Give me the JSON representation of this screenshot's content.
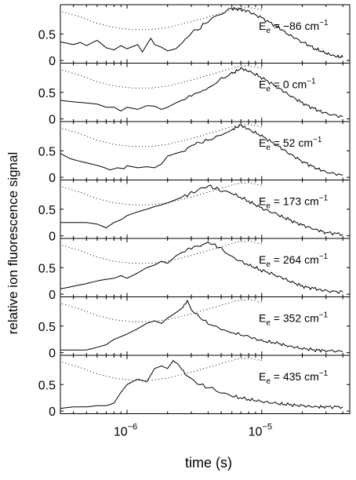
{
  "chart_data": {
    "type": "line",
    "ylabel": "relative ion fluorescence signal",
    "xlabel": "time (s)",
    "x_scale": "log",
    "xlim": [
      3.2e-07,
      4.5e-05
    ],
    "ylim": [
      -0.05,
      1.05
    ],
    "x_tick_labels": [
      {
        "x": 1e-06,
        "base": "10",
        "exp": "−6"
      },
      {
        "x": 1e-05,
        "base": "10",
        "exp": "−5"
      }
    ],
    "y_tick_labels": [
      {
        "y": 0,
        "label": "0"
      },
      {
        "y": 0.5,
        "label": "0.5"
      }
    ],
    "grid": false,
    "panels": [
      {
        "label": {
          "sym": "E",
          "sub": "e",
          "value": "= −86 cm",
          "sup": "−1"
        },
        "dotted": [
          [
            3.3e-07,
            0.92
          ],
          [
            4.5e-07,
            0.82
          ],
          [
            6e-07,
            0.7
          ],
          [
            8e-07,
            0.62
          ],
          [
            1.1e-06,
            0.58
          ],
          [
            1.5e-06,
            0.58
          ],
          [
            2e-06,
            0.62
          ],
          [
            3e-06,
            0.73
          ],
          [
            4.5e-06,
            0.86
          ],
          [
            6.5e-06,
            0.98
          ],
          [
            8e-06,
            1.0
          ],
          [
            1e-05,
            0.95
          ]
        ],
        "solid": [
          [
            3.2e-07,
            0.35
          ],
          [
            4e-07,
            0.3
          ],
          [
            4.5e-07,
            0.34
          ],
          [
            5e-07,
            0.28
          ],
          [
            6e-07,
            0.38
          ],
          [
            7e-07,
            0.24
          ],
          [
            8e-07,
            0.2
          ],
          [
            9e-07,
            0.28
          ],
          [
            1e-06,
            0.22
          ],
          [
            1.2e-06,
            0.3
          ],
          [
            1.3e-06,
            0.16
          ],
          [
            1.5e-06,
            0.42
          ],
          [
            1.6e-06,
            0.3
          ],
          [
            1.8e-06,
            0.25
          ],
          [
            2e-06,
            0.18
          ],
          [
            2.3e-06,
            0.22
          ],
          [
            2.7e-06,
            0.38
          ],
          [
            3e-06,
            0.52
          ],
          [
            3.5e-06,
            0.62
          ],
          [
            4e-06,
            0.75
          ],
          [
            5e-06,
            0.88
          ],
          [
            6e-06,
            0.98
          ],
          [
            7e-06,
            0.96
          ],
          [
            8e-06,
            0.92
          ],
          [
            1e-05,
            0.8
          ],
          [
            1.3e-05,
            0.64
          ],
          [
            1.6e-05,
            0.48
          ],
          [
            2e-05,
            0.35
          ],
          [
            2.5e-05,
            0.22
          ],
          [
            3e-05,
            0.14
          ],
          [
            3.5e-05,
            0.08
          ],
          [
            4e-05,
            0.06
          ]
        ]
      },
      {
        "label": {
          "sym": "E",
          "sub": "e",
          "value": "= 0 cm",
          "sup": "−1"
        },
        "dotted": [
          [
            3.3e-07,
            0.92
          ],
          [
            4.5e-07,
            0.82
          ],
          [
            6e-07,
            0.7
          ],
          [
            8e-07,
            0.62
          ],
          [
            1.1e-06,
            0.58
          ],
          [
            1.5e-06,
            0.58
          ],
          [
            2e-06,
            0.62
          ],
          [
            3e-06,
            0.73
          ],
          [
            4.5e-06,
            0.86
          ],
          [
            6.5e-06,
            0.98
          ],
          [
            8e-06,
            1.0
          ],
          [
            1e-05,
            0.95
          ]
        ],
        "solid": [
          [
            3.2e-07,
            0.35
          ],
          [
            4e-07,
            0.32
          ],
          [
            5e-07,
            0.3
          ],
          [
            6e-07,
            0.28
          ],
          [
            7e-07,
            0.22
          ],
          [
            8e-07,
            0.22
          ],
          [
            9e-07,
            0.15
          ],
          [
            1e-06,
            0.22
          ],
          [
            1.2e-06,
            0.18
          ],
          [
            1.4e-06,
            0.25
          ],
          [
            1.6e-06,
            0.24
          ],
          [
            1.8e-06,
            0.18
          ],
          [
            2e-06,
            0.22
          ],
          [
            2.3e-06,
            0.3
          ],
          [
            2.7e-06,
            0.38
          ],
          [
            3e-06,
            0.45
          ],
          [
            3.5e-06,
            0.52
          ],
          [
            4e-06,
            0.58
          ],
          [
            5e-06,
            0.75
          ],
          [
            6e-06,
            0.85
          ],
          [
            7e-06,
            0.95
          ],
          [
            8e-06,
            0.9
          ],
          [
            1e-05,
            0.78
          ],
          [
            1.3e-05,
            0.6
          ],
          [
            1.6e-05,
            0.45
          ],
          [
            2e-05,
            0.3
          ],
          [
            2.5e-05,
            0.18
          ],
          [
            3e-05,
            0.1
          ],
          [
            4e-05,
            0.04
          ]
        ]
      },
      {
        "label": {
          "sym": "E",
          "sub": "e",
          "value": "= 52 cm",
          "sup": "−1"
        },
        "dotted": [
          [
            3.3e-07,
            0.92
          ],
          [
            4.5e-07,
            0.82
          ],
          [
            6e-07,
            0.7
          ],
          [
            8e-07,
            0.62
          ],
          [
            1.1e-06,
            0.58
          ],
          [
            1.5e-06,
            0.58
          ],
          [
            2e-06,
            0.62
          ],
          [
            3e-06,
            0.73
          ],
          [
            4.5e-06,
            0.86
          ],
          [
            6.5e-06,
            0.98
          ],
          [
            8e-06,
            1.0
          ],
          [
            1e-05,
            0.95
          ]
        ],
        "solid": [
          [
            3.2e-07,
            0.45
          ],
          [
            3.8e-07,
            0.35
          ],
          [
            4.5e-07,
            0.3
          ],
          [
            5.5e-07,
            0.25
          ],
          [
            6.5e-07,
            0.2
          ],
          [
            7.5e-07,
            0.14
          ],
          [
            8.5e-07,
            0.18
          ],
          [
            9.5e-07,
            0.16
          ],
          [
            1e-06,
            0.22
          ],
          [
            1.2e-06,
            0.18
          ],
          [
            1.4e-06,
            0.2
          ],
          [
            1.6e-06,
            0.18
          ],
          [
            1.8e-06,
            0.25
          ],
          [
            2e-06,
            0.4
          ],
          [
            2.3e-06,
            0.45
          ],
          [
            2.7e-06,
            0.5
          ],
          [
            3e-06,
            0.6
          ],
          [
            3.5e-06,
            0.65
          ],
          [
            4e-06,
            0.7
          ],
          [
            5e-06,
            0.8
          ],
          [
            6e-06,
            0.9
          ],
          [
            7e-06,
            0.98
          ],
          [
            8e-06,
            0.9
          ],
          [
            1e-05,
            0.78
          ],
          [
            1.3e-05,
            0.6
          ],
          [
            1.6e-05,
            0.45
          ],
          [
            2e-05,
            0.3
          ],
          [
            2.5e-05,
            0.18
          ],
          [
            3e-05,
            0.1
          ],
          [
            4e-05,
            0.04
          ]
        ]
      },
      {
        "label": {
          "sym": "E",
          "sub": "e",
          "value": "= 173 cm",
          "sup": "−1"
        },
        "dotted": [
          [
            3.3e-07,
            0.92
          ],
          [
            4.5e-07,
            0.82
          ],
          [
            6e-07,
            0.7
          ],
          [
            8e-07,
            0.62
          ],
          [
            1.1e-06,
            0.58
          ],
          [
            1.5e-06,
            0.58
          ],
          [
            2e-06,
            0.62
          ],
          [
            3e-06,
            0.73
          ],
          [
            4.5e-06,
            0.86
          ],
          [
            6.5e-06,
            0.98
          ],
          [
            8e-06,
            1.0
          ],
          [
            1e-05,
            0.95
          ]
        ],
        "solid": [
          [
            3.2e-07,
            0.25
          ],
          [
            4e-07,
            0.25
          ],
          [
            5e-07,
            0.25
          ],
          [
            6e-07,
            0.22
          ],
          [
            7e-07,
            0.15
          ],
          [
            8e-07,
            0.25
          ],
          [
            9e-07,
            0.3
          ],
          [
            1e-06,
            0.38
          ],
          [
            1.2e-06,
            0.45
          ],
          [
            1.4e-06,
            0.5
          ],
          [
            1.6e-06,
            0.55
          ],
          [
            1.8e-06,
            0.58
          ],
          [
            2e-06,
            0.62
          ],
          [
            2.3e-06,
            0.68
          ],
          [
            2.7e-06,
            0.75
          ],
          [
            3e-06,
            0.8
          ],
          [
            3.5e-06,
            0.88
          ],
          [
            4e-06,
            0.94
          ],
          [
            4.5e-06,
            0.9
          ],
          [
            5e-06,
            0.85
          ],
          [
            6e-06,
            0.8
          ],
          [
            8e-06,
            0.65
          ],
          [
            1e-05,
            0.52
          ],
          [
            1.3e-05,
            0.4
          ],
          [
            1.6e-05,
            0.3
          ],
          [
            2e-05,
            0.2
          ],
          [
            2.5e-05,
            0.12
          ],
          [
            3e-05,
            0.06
          ],
          [
            4e-05,
            0.03
          ]
        ]
      },
      {
        "label": {
          "sym": "E",
          "sub": "e",
          "value": "= 264 cm",
          "sup": "−1"
        },
        "dotted": [
          [
            3.3e-07,
            0.92
          ],
          [
            4.5e-07,
            0.82
          ],
          [
            6e-07,
            0.7
          ],
          [
            8e-07,
            0.62
          ],
          [
            1.1e-06,
            0.58
          ],
          [
            1.5e-06,
            0.58
          ],
          [
            2e-06,
            0.62
          ],
          [
            3e-06,
            0.73
          ],
          [
            4.5e-06,
            0.86
          ],
          [
            6.5e-06,
            0.98
          ],
          [
            8e-06,
            1.0
          ],
          [
            1e-05,
            0.95
          ]
        ],
        "solid": [
          [
            3.2e-07,
            0.1
          ],
          [
            4e-07,
            0.15
          ],
          [
            5e-07,
            0.2
          ],
          [
            6e-07,
            0.25
          ],
          [
            7e-07,
            0.28
          ],
          [
            8e-07,
            0.3
          ],
          [
            9e-07,
            0.35
          ],
          [
            1e-06,
            0.3
          ],
          [
            1.2e-06,
            0.4
          ],
          [
            1.4e-06,
            0.5
          ],
          [
            1.6e-06,
            0.55
          ],
          [
            1.8e-06,
            0.62
          ],
          [
            2e-06,
            0.58
          ],
          [
            2.3e-06,
            0.72
          ],
          [
            2.7e-06,
            0.82
          ],
          [
            3e-06,
            0.88
          ],
          [
            3.5e-06,
            0.92
          ],
          [
            4e-06,
            0.98
          ],
          [
            4.5e-06,
            0.92
          ],
          [
            5e-06,
            0.85
          ],
          [
            6e-06,
            0.7
          ],
          [
            8e-06,
            0.55
          ],
          [
            1e-05,
            0.45
          ],
          [
            1.3e-05,
            0.35
          ],
          [
            1.6e-05,
            0.25
          ],
          [
            2e-05,
            0.15
          ],
          [
            2.5e-05,
            0.1
          ],
          [
            3e-05,
            0.06
          ],
          [
            4e-05,
            0.04
          ]
        ]
      },
      {
        "label": {
          "sym": "E",
          "sub": "e",
          "value": "= 352 cm",
          "sup": "−1"
        },
        "dotted": [
          [
            3.3e-07,
            0.92
          ],
          [
            4.5e-07,
            0.82
          ],
          [
            6e-07,
            0.7
          ],
          [
            8e-07,
            0.62
          ],
          [
            1.1e-06,
            0.58
          ],
          [
            1.5e-06,
            0.58
          ],
          [
            2e-06,
            0.62
          ],
          [
            3e-06,
            0.73
          ],
          [
            4.5e-06,
            0.86
          ],
          [
            6.5e-06,
            0.98
          ],
          [
            8e-06,
            1.0
          ],
          [
            1e-05,
            0.95
          ]
        ],
        "solid": [
          [
            3.2e-07,
            0.05
          ],
          [
            4e-07,
            0.05
          ],
          [
            5e-07,
            0.05
          ],
          [
            6e-07,
            0.1
          ],
          [
            7e-07,
            0.15
          ],
          [
            8e-07,
            0.25
          ],
          [
            9e-07,
            0.3
          ],
          [
            1e-06,
            0.35
          ],
          [
            1.2e-06,
            0.45
          ],
          [
            1.4e-06,
            0.55
          ],
          [
            1.6e-06,
            0.6
          ],
          [
            1.8e-06,
            0.55
          ],
          [
            2e-06,
            0.65
          ],
          [
            2.3e-06,
            0.75
          ],
          [
            2.6e-06,
            0.85
          ],
          [
            2.8e-06,
            0.98
          ],
          [
            3e-06,
            0.8
          ],
          [
            3.5e-06,
            0.65
          ],
          [
            4e-06,
            0.55
          ],
          [
            5e-06,
            0.45
          ],
          [
            6e-06,
            0.38
          ],
          [
            8e-06,
            0.3
          ],
          [
            1e-05,
            0.22
          ],
          [
            1.3e-05,
            0.18
          ],
          [
            1.6e-05,
            0.12
          ],
          [
            2e-05,
            0.08
          ],
          [
            2.5e-05,
            0.05
          ],
          [
            3e-05,
            0.04
          ],
          [
            4e-05,
            0.02
          ]
        ]
      },
      {
        "label": {
          "sym": "E",
          "sub": "e",
          "value": "= 435 cm",
          "sup": "−1"
        },
        "dotted": [
          [
            3.3e-07,
            0.92
          ],
          [
            4.5e-07,
            0.82
          ],
          [
            6e-07,
            0.7
          ],
          [
            8e-07,
            0.62
          ],
          [
            1.1e-06,
            0.58
          ],
          [
            1.5e-06,
            0.58
          ],
          [
            2e-06,
            0.62
          ],
          [
            3e-06,
            0.73
          ],
          [
            4.5e-06,
            0.86
          ],
          [
            6.5e-06,
            0.98
          ],
          [
            8e-06,
            1.0
          ],
          [
            1e-05,
            0.95
          ]
        ],
        "solid": [
          [
            3.2e-07,
            0.05
          ],
          [
            4e-07,
            0.08
          ],
          [
            5e-07,
            0.08
          ],
          [
            6e-07,
            0.1
          ],
          [
            7e-07,
            0.1
          ],
          [
            8e-07,
            0.15
          ],
          [
            9e-07,
            0.35
          ],
          [
            1e-06,
            0.5
          ],
          [
            1.2e-06,
            0.6
          ],
          [
            1.4e-06,
            0.55
          ],
          [
            1.6e-06,
            0.8
          ],
          [
            1.8e-06,
            0.85
          ],
          [
            2e-06,
            0.8
          ],
          [
            2.2e-06,
            0.95
          ],
          [
            2.4e-06,
            0.88
          ],
          [
            2.6e-06,
            0.75
          ],
          [
            3e-06,
            0.6
          ],
          [
            3.5e-06,
            0.5
          ],
          [
            4e-06,
            0.45
          ],
          [
            5e-06,
            0.35
          ],
          [
            6e-06,
            0.28
          ],
          [
            8e-06,
            0.22
          ],
          [
            1e-05,
            0.18
          ],
          [
            1.3e-05,
            0.14
          ],
          [
            1.6e-05,
            0.12
          ],
          [
            2e-05,
            0.1
          ],
          [
            2.5e-05,
            0.08
          ],
          [
            3e-05,
            0.08
          ],
          [
            4e-05,
            0.08
          ]
        ]
      }
    ]
  }
}
